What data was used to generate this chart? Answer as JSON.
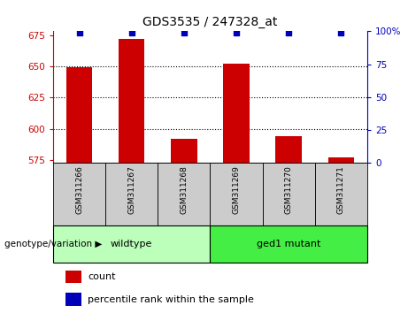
{
  "title": "GDS3535 / 247328_at",
  "samples": [
    "GSM311266",
    "GSM311267",
    "GSM311268",
    "GSM311269",
    "GSM311270",
    "GSM311271"
  ],
  "counts": [
    649,
    672,
    592,
    652,
    594,
    577
  ],
  "percentile_ranks": [
    99,
    99,
    99,
    99,
    99,
    99
  ],
  "ylim_left": [
    573,
    678
  ],
  "yticks_left": [
    575,
    600,
    625,
    650,
    675
  ],
  "ylim_right": [
    0,
    100
  ],
  "yticks_right": [
    0,
    25,
    50,
    75,
    100
  ],
  "bar_color": "#cc0000",
  "dot_color": "#0000bb",
  "bar_bottom": 573,
  "groups": [
    {
      "label": "wildtype",
      "indices": [
        0,
        1,
        2
      ],
      "color": "#bbffbb"
    },
    {
      "label": "ged1 mutant",
      "indices": [
        3,
        4,
        5
      ],
      "color": "#44ee44"
    }
  ],
  "group_label": "genotype/variation",
  "legend_count_label": "count",
  "legend_percentile_label": "percentile rank within the sample",
  "background_color": "#ffffff",
  "plot_bg_color": "#ffffff",
  "tick_label_color_left": "#cc0000",
  "tick_label_color_right": "#0000bb",
  "xlabel_area_color": "#cccccc"
}
